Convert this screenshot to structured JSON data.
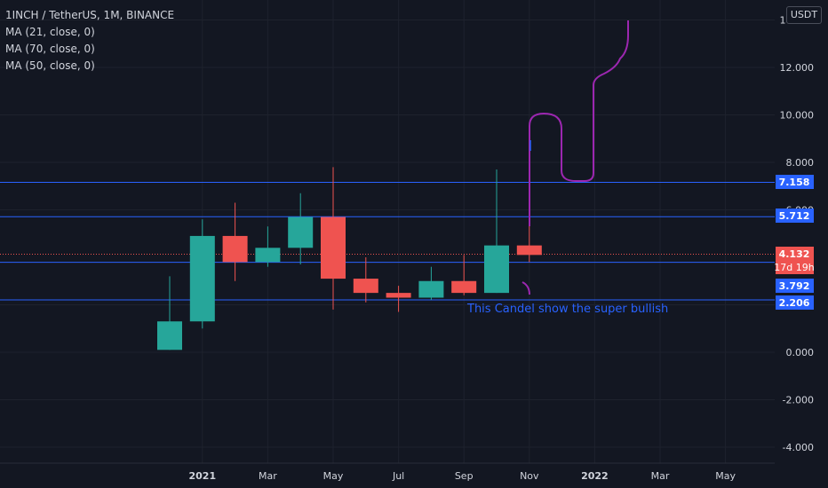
{
  "legend": {
    "symbol": "1INCH / TetherUS, 1M, BINANCE",
    "indicators": [
      "MA (21, close, 0)",
      "MA (70, close, 0)",
      "MA (50, close, 0)"
    ]
  },
  "currency_label": "USDT",
  "colors": {
    "background": "#131722",
    "up": "#26a69a",
    "down": "#ef5350",
    "hline": "#2962ff",
    "drawing": "#9c27b0",
    "annotation": "#2962ff",
    "axis_text": "#d1d4dc"
  },
  "chart_data": {
    "type": "candlestick",
    "x_labels": [
      "2021",
      "Mar",
      "May",
      "Jul",
      "Sep",
      "Nov",
      "2022",
      "Mar",
      "May"
    ],
    "y_ticks": [
      "14.000",
      "12.000",
      "10.000",
      "8.000",
      "6.000",
      "2.000",
      "0.000",
      "-2.000",
      "-4.000"
    ],
    "y_tick_values": [
      14,
      12,
      10,
      8,
      6,
      2,
      0,
      -2,
      -4
    ],
    "ylim": [
      -4.5,
      14.4
    ],
    "candles": [
      {
        "month": "Dec 2020",
        "open": 0.1,
        "high": 3.2,
        "low": 0.1,
        "close": 1.3
      },
      {
        "month": "Jan 2021",
        "open": 1.3,
        "high": 5.6,
        "low": 1.0,
        "close": 4.9
      },
      {
        "month": "Feb 2021",
        "open": 4.9,
        "high": 6.3,
        "low": 3.0,
        "close": 3.8
      },
      {
        "month": "Mar 2021",
        "open": 3.8,
        "high": 5.3,
        "low": 3.6,
        "close": 4.4
      },
      {
        "month": "Apr 2021",
        "open": 4.4,
        "high": 6.7,
        "low": 3.7,
        "close": 5.7
      },
      {
        "month": "May 2021",
        "open": 5.7,
        "high": 7.8,
        "low": 1.8,
        "close": 3.1
      },
      {
        "month": "Jun 2021",
        "open": 3.1,
        "high": 4.0,
        "low": 2.1,
        "close": 2.5
      },
      {
        "month": "Jul 2021",
        "open": 2.5,
        "high": 2.8,
        "low": 1.7,
        "close": 2.3
      },
      {
        "month": "Aug 2021",
        "open": 2.3,
        "high": 3.6,
        "low": 2.2,
        "close": 3.0
      },
      {
        "month": "Sep 2021",
        "open": 3.0,
        "high": 4.1,
        "low": 2.4,
        "close": 2.5
      },
      {
        "month": "Oct 2021",
        "open": 2.5,
        "high": 7.7,
        "low": 2.5,
        "close": 4.5
      },
      {
        "month": "Nov 2021",
        "open": 4.5,
        "high": 5.5,
        "low": 3.8,
        "close": 4.1
      }
    ],
    "horizontal_lines": [
      7.158,
      5.712,
      3.792,
      2.206
    ],
    "price_labels": [
      {
        "text": "7.158",
        "value": 7.158,
        "color": "#2962ff"
      },
      {
        "text": "5.712",
        "value": 5.712,
        "color": "#2962ff"
      },
      {
        "text": "4.132",
        "value": 4.132,
        "color": "#ef5350"
      },
      {
        "text": "17d 19h",
        "value": 3.95,
        "color": "#ef5350"
      },
      {
        "text": "3.792",
        "value": 3.792,
        "color": "#2962ff"
      },
      {
        "text": "2.206",
        "value": 2.206,
        "color": "#2962ff"
      }
    ],
    "current_price": 4.132,
    "annotation": "This Candel show the super bullish"
  }
}
